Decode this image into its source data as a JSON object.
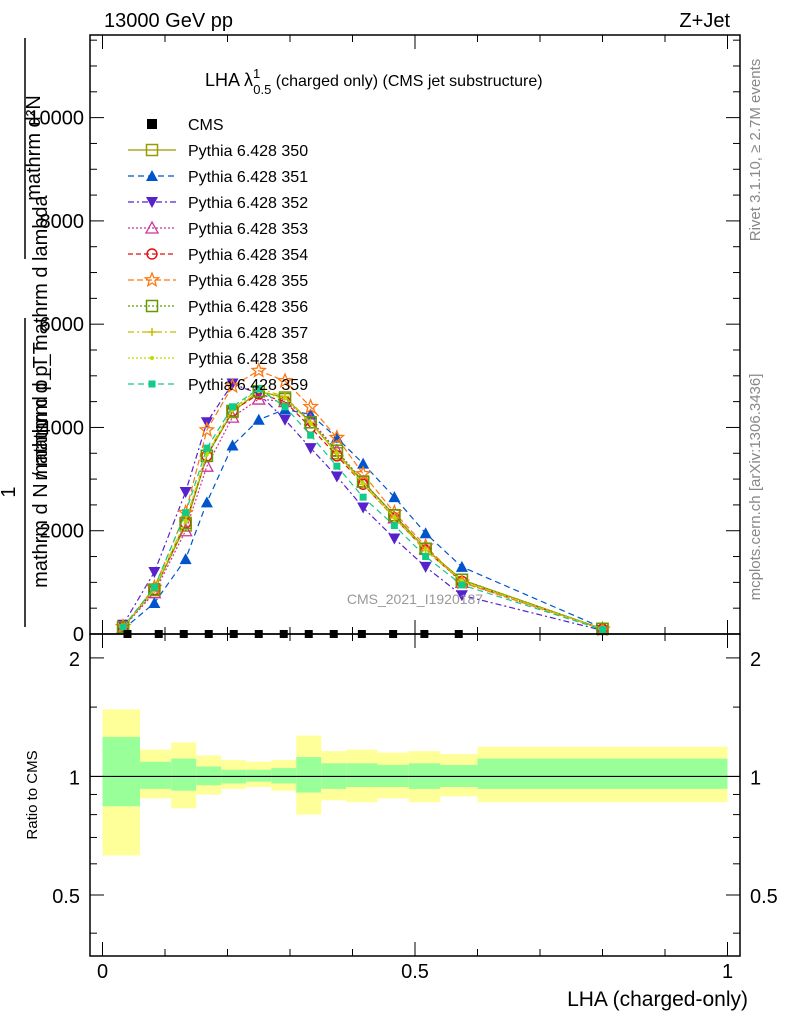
{
  "header": {
    "left": "13000 GeV pp",
    "right": "Z+Jet"
  },
  "legend_title": {
    "main": "LHA λ",
    "sup": "1",
    "sub": "0.5",
    "rest": " (charged only) (CMS jet substructure)"
  },
  "side_text": {
    "rivet": "Rivet 3.1.10, ≥ 2.7M events",
    "mcplots": "mcplots.cern.ch [arXiv:1306.3436]"
  },
  "watermark": "CMS_2021_I1920187",
  "ylabel_main": {
    "numerator": "mathrm d²N",
    "denominator": "mathrm d p_T mathrm d lambda",
    "one": "1",
    "inner": "mathrm d N / mathrm d p_T"
  },
  "ylabel_ratio": "Ratio to CMS",
  "xlabel": "LHA (charged-only)",
  "colors": {
    "band_inner": "#99ff99",
    "band_outer": "#ffff99",
    "data": "#000000"
  },
  "chart_data": [
    {
      "type": "line",
      "title": "LHA λ^1_0.5 (charged only) (CMS jet substructure)",
      "xlim": [
        -0.02,
        1.02
      ],
      "ylim": [
        0,
        11600
      ],
      "yticks": [
        0,
        2000,
        4000,
        6000,
        8000,
        10000
      ],
      "ytick_labels": [
        "0",
        "2000",
        "4000",
        "6000",
        "8000",
        "10000"
      ],
      "xticks": [
        0,
        0.5,
        1
      ],
      "legend_position": "top-left",
      "data_series": {
        "name": "CMS",
        "x": [
          0.04,
          0.09,
          0.13,
          0.17,
          0.21,
          0.25,
          0.29,
          0.33,
          0.37,
          0.415,
          0.465,
          0.515,
          0.57
        ],
        "y": [
          0,
          0,
          0,
          0,
          0,
          0,
          0,
          0,
          0,
          0,
          0,
          0,
          0
        ]
      },
      "x": [
        0.033,
        0.083,
        0.133,
        0.167,
        0.208,
        0.25,
        0.292,
        0.333,
        0.375,
        0.417,
        0.467,
        0.517,
        0.575,
        0.8
      ],
      "series": [
        {
          "name": "Pythia 6.428 350",
          "color": "#999900",
          "marker": "square-open",
          "dash": "",
          "values": [
            130,
            850,
            2100,
            3450,
            4300,
            4700,
            4580,
            4100,
            3500,
            2950,
            2300,
            1650,
            1050,
            100
          ]
        },
        {
          "name": "Pythia 6.428 351",
          "color": "#0055cc",
          "marker": "triangle-up",
          "dash": "6,4",
          "values": [
            90,
            600,
            1450,
            2550,
            3650,
            4150,
            4350,
            4250,
            3800,
            3300,
            2650,
            1950,
            1300,
            120
          ]
        },
        {
          "name": "Pythia 6.428 352",
          "color": "#5522cc",
          "marker": "triangle-down",
          "dash": "6,3,2,3",
          "values": [
            180,
            1200,
            2750,
            4100,
            4850,
            4650,
            4150,
            3600,
            3050,
            2450,
            1850,
            1300,
            750,
            70
          ]
        },
        {
          "name": "Pythia 6.428 353",
          "color": "#cc3399",
          "marker": "triangle-open",
          "dash": "2,2",
          "values": [
            120,
            800,
            2000,
            3250,
            4200,
            4550,
            4500,
            4150,
            3550,
            2950,
            2250,
            1650,
            1000,
            100
          ]
        },
        {
          "name": "Pythia 6.428 354",
          "color": "#dd1111",
          "marker": "circle-open",
          "dash": "5,3",
          "values": [
            130,
            860,
            2150,
            3450,
            4320,
            4650,
            4500,
            4000,
            3450,
            2900,
            2250,
            1620,
            1020,
            95
          ]
        },
        {
          "name": "Pythia 6.428 355",
          "color": "#ff7711",
          "marker": "star-open",
          "dash": "6,3",
          "values": [
            140,
            900,
            2350,
            3950,
            4800,
            5100,
            4900,
            4400,
            3800,
            3100,
            2350,
            1700,
            1000,
            90
          ]
        },
        {
          "name": "Pythia 6.428 356",
          "color": "#669900",
          "marker": "square-open",
          "dash": "2,2",
          "values": [
            130,
            860,
            2150,
            3450,
            4320,
            4700,
            4550,
            4100,
            3550,
            2950,
            2300,
            1650,
            1050,
            100
          ]
        },
        {
          "name": "Pythia 6.428 357",
          "color": "#ccbb00",
          "marker": "cross-dot",
          "dash": "6,3,2,3",
          "values": [
            130,
            870,
            2200,
            3500,
            4350,
            4750,
            4600,
            4100,
            3500,
            2900,
            2250,
            1620,
            1020,
            95
          ]
        },
        {
          "name": "Pythia 6.428 358",
          "color": "#bbdd00",
          "marker": "dot",
          "dash": "2,2",
          "values": [
            130,
            860,
            2180,
            3480,
            4330,
            4700,
            4560,
            4080,
            3500,
            2920,
            2260,
            1640,
            1030,
            95
          ]
        },
        {
          "name": "Pythia 6.428 359",
          "color": "#11cc88",
          "marker": "square-filled",
          "dash": "6,4",
          "values": [
            130,
            900,
            2350,
            3600,
            4400,
            4750,
            4400,
            3850,
            3250,
            2650,
            2100,
            1500,
            950,
            85
          ]
        }
      ]
    },
    {
      "type": "area",
      "title": "Ratio to CMS",
      "ylabel": "Ratio to CMS",
      "xlabel": "LHA (charged-only)",
      "xlim": [
        -0.02,
        1.02
      ],
      "ylim": [
        0.35,
        2.3
      ],
      "yticks": [
        0.5,
        1,
        2
      ],
      "ytick_labels": [
        "0.5",
        "1",
        "2"
      ],
      "xticks": [
        0,
        0.5,
        1
      ],
      "xtick_labels": [
        "0",
        "0.5",
        "1"
      ],
      "reference_line": 1,
      "bins": [
        {
          "x0": 0.0,
          "x1": 0.06,
          "inner": [
            0.84,
            1.26
          ],
          "outer": [
            0.63,
            1.48
          ]
        },
        {
          "x0": 0.06,
          "x1": 0.11,
          "inner": [
            0.93,
            1.09
          ],
          "outer": [
            0.88,
            1.17
          ]
        },
        {
          "x0": 0.11,
          "x1": 0.15,
          "inner": [
            0.92,
            1.11
          ],
          "outer": [
            0.83,
            1.22
          ]
        },
        {
          "x0": 0.15,
          "x1": 0.19,
          "inner": [
            0.95,
            1.06
          ],
          "outer": [
            0.9,
            1.13
          ]
        },
        {
          "x0": 0.19,
          "x1": 0.23,
          "inner": [
            0.96,
            1.04
          ],
          "outer": [
            0.93,
            1.1
          ]
        },
        {
          "x0": 0.23,
          "x1": 0.27,
          "inner": [
            0.97,
            1.04
          ],
          "outer": [
            0.94,
            1.09
          ]
        },
        {
          "x0": 0.27,
          "x1": 0.31,
          "inner": [
            0.96,
            1.05
          ],
          "outer": [
            0.92,
            1.1
          ]
        },
        {
          "x0": 0.31,
          "x1": 0.35,
          "inner": [
            0.91,
            1.12
          ],
          "outer": [
            0.8,
            1.27
          ]
        },
        {
          "x0": 0.35,
          "x1": 0.39,
          "inner": [
            0.93,
            1.08
          ],
          "outer": [
            0.87,
            1.16
          ]
        },
        {
          "x0": 0.39,
          "x1": 0.44,
          "inner": [
            0.94,
            1.08
          ],
          "outer": [
            0.86,
            1.17
          ]
        },
        {
          "x0": 0.44,
          "x1": 0.49,
          "inner": [
            0.94,
            1.07
          ],
          "outer": [
            0.88,
            1.15
          ]
        },
        {
          "x0": 0.49,
          "x1": 0.54,
          "inner": [
            0.93,
            1.08
          ],
          "outer": [
            0.86,
            1.16
          ]
        },
        {
          "x0": 0.54,
          "x1": 0.6,
          "inner": [
            0.94,
            1.07
          ],
          "outer": [
            0.89,
            1.14
          ]
        },
        {
          "x0": 0.6,
          "x1": 1.0,
          "inner": [
            0.93,
            1.11
          ],
          "outer": [
            0.86,
            1.19
          ]
        }
      ]
    }
  ]
}
